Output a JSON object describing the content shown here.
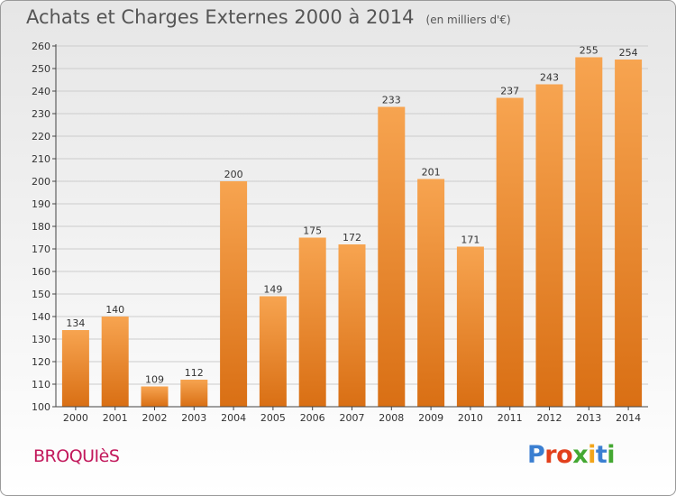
{
  "header": {
    "title": "Achats et Charges Externes 2000 à 2014",
    "unit": "(en milliers d'€)"
  },
  "footer": {
    "place": "BROQUIèS",
    "brand": "Proxiti",
    "brand_colors": [
      "#3b7fd1",
      "#e2401c",
      "#e2401c",
      "#44a832",
      "#f2a51a",
      "#3b7fd1",
      "#44a832"
    ]
  },
  "colors": {
    "bar_light": "#f7a450",
    "bar_dark": "#d96f14",
    "axis": "#444444",
    "grid": "#cccccc"
  },
  "chart_data": {
    "type": "bar",
    "categories": [
      "2000",
      "2001",
      "2002",
      "2003",
      "2004",
      "2005",
      "2006",
      "2007",
      "2008",
      "2009",
      "2010",
      "2011",
      "2012",
      "2013",
      "2014"
    ],
    "values": [
      134,
      140,
      109,
      112,
      200,
      149,
      175,
      172,
      233,
      201,
      171,
      237,
      243,
      255,
      254
    ],
    "ylim": [
      100,
      260
    ],
    "yticks": [
      100,
      110,
      120,
      130,
      140,
      150,
      160,
      170,
      180,
      190,
      200,
      210,
      220,
      230,
      240,
      250,
      260
    ],
    "grid": true
  }
}
